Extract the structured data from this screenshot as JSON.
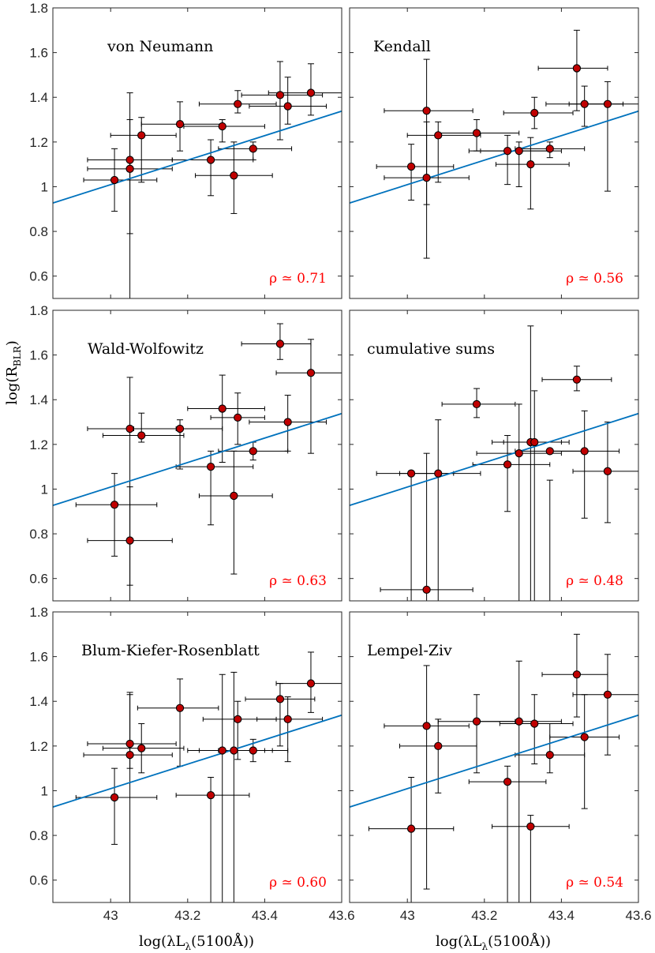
{
  "figure": {
    "ylabel": "log(R_BLR)",
    "ylabel_main": "log(R",
    "ylabel_sub": "BLR",
    "ylabel_close": ")",
    "xlabel": "log(λL_λ(5100Å))",
    "xlabel_main": "log(λL",
    "xlabel_sub": "λ",
    "xlabel_close": "(5100Å))",
    "colors": {
      "marker_fill": "#c00000",
      "fit_line": "#0072bd",
      "rho_text": "#ff0000",
      "axes": "#262626",
      "errorbar": "#000000"
    }
  },
  "chart_data": [
    {
      "type": "scatter",
      "title": "von Neumann",
      "rho_label": "ρ ≃ 0.71",
      "xlim": [
        42.85,
        43.6
      ],
      "ylim": [
        0.5,
        1.8
      ],
      "xticks": [
        43,
        43.2,
        43.4,
        43.6
      ],
      "xtick_labels": [
        "43",
        "43.2",
        "43.4",
        "43.6"
      ],
      "yticks": [
        0.6,
        0.8,
        1,
        1.2,
        1.4,
        1.6,
        1.8
      ],
      "ytick_labels": [
        "0.6",
        "0.8",
        "1",
        "1.2",
        "1.4",
        "1.6",
        "1.8"
      ],
      "fit_line": {
        "x": [
          42.85,
          43.6
        ],
        "y": [
          0.927,
          1.338
        ]
      },
      "points": [
        {
          "x": 43.01,
          "y": 1.03,
          "xlo": 42.93,
          "xhi": 43.12,
          "ylo": 0.89,
          "yhi": 1.17
        },
        {
          "x": 43.05,
          "y": 1.08,
          "xlo": 42.94,
          "xhi": 43.16,
          "ylo": 0.79,
          "yhi": 1.3
        },
        {
          "x": 43.05,
          "y": 1.12,
          "xlo": 42.94,
          "xhi": 43.16,
          "ylo": 0.5,
          "yhi": 1.42
        },
        {
          "x": 43.08,
          "y": 1.23,
          "xlo": 43.0,
          "xhi": 43.17,
          "ylo": 1.02,
          "yhi": 1.31
        },
        {
          "x": 43.18,
          "y": 1.28,
          "xlo": 43.08,
          "xhi": 43.29,
          "ylo": 1.16,
          "yhi": 1.38
        },
        {
          "x": 43.26,
          "y": 1.12,
          "xlo": 43.16,
          "xhi": 43.37,
          "ylo": 0.96,
          "yhi": 1.21
        },
        {
          "x": 43.29,
          "y": 1.27,
          "xlo": 43.19,
          "xhi": 43.4,
          "ylo": 1.2,
          "yhi": 1.3
        },
        {
          "x": 43.32,
          "y": 1.05,
          "xlo": 43.22,
          "xhi": 43.42,
          "ylo": 0.88,
          "yhi": 1.2
        },
        {
          "x": 43.33,
          "y": 1.37,
          "xlo": 43.23,
          "xhi": 43.43,
          "ylo": 1.33,
          "yhi": 1.43
        },
        {
          "x": 43.37,
          "y": 1.17,
          "xlo": 43.28,
          "xhi": 43.47,
          "ylo": 1.12,
          "yhi": 1.2
        },
        {
          "x": 43.44,
          "y": 1.41,
          "xlo": 43.34,
          "xhi": 43.55,
          "ylo": 1.21,
          "yhi": 1.56
        },
        {
          "x": 43.46,
          "y": 1.36,
          "xlo": 43.36,
          "xhi": 43.56,
          "ylo": 1.28,
          "yhi": 1.49
        },
        {
          "x": 43.52,
          "y": 1.42,
          "xlo": 43.41,
          "xhi": 43.6,
          "ylo": 1.32,
          "yhi": 1.55
        }
      ]
    },
    {
      "type": "scatter",
      "title": "Kendall",
      "rho_label": "ρ ≃ 0.56",
      "xlim": [
        42.85,
        43.6
      ],
      "ylim": [
        0.5,
        1.8
      ],
      "xticks": [
        43,
        43.2,
        43.4,
        43.6
      ],
      "xtick_labels": [
        "43",
        "43.2",
        "43.4",
        "43.6"
      ],
      "yticks": [
        0.6,
        0.8,
        1,
        1.2,
        1.4,
        1.6,
        1.8
      ],
      "ytick_labels": [
        "0.6",
        "0.8",
        "1",
        "1.2",
        "1.4",
        "1.6",
        "1.8"
      ],
      "fit_line": {
        "x": [
          42.85,
          43.6
        ],
        "y": [
          0.927,
          1.338
        ]
      },
      "points": [
        {
          "x": 43.01,
          "y": 1.09,
          "xlo": 42.92,
          "xhi": 43.12,
          "ylo": 0.94,
          "yhi": 1.19
        },
        {
          "x": 43.05,
          "y": 1.04,
          "xlo": 42.94,
          "xhi": 43.16,
          "ylo": 0.68,
          "yhi": 1.29
        },
        {
          "x": 43.05,
          "y": 1.34,
          "xlo": 42.94,
          "xhi": 43.17,
          "ylo": 0.92,
          "yhi": 1.57
        },
        {
          "x": 43.08,
          "y": 1.23,
          "xlo": 43.0,
          "xhi": 43.19,
          "ylo": 1.02,
          "yhi": 1.29
        },
        {
          "x": 43.18,
          "y": 1.24,
          "xlo": 43.08,
          "xhi": 43.29,
          "ylo": 1.16,
          "yhi": 1.3
        },
        {
          "x": 43.26,
          "y": 1.16,
          "xlo": 43.16,
          "xhi": 43.37,
          "ylo": 1.01,
          "yhi": 1.23
        },
        {
          "x": 43.29,
          "y": 1.16,
          "xlo": 43.19,
          "xhi": 43.4,
          "ylo": 1.0,
          "yhi": 1.2
        },
        {
          "x": 43.32,
          "y": 1.1,
          "xlo": 43.23,
          "xhi": 43.42,
          "ylo": 0.9,
          "yhi": 1.22
        },
        {
          "x": 43.33,
          "y": 1.33,
          "xlo": 43.25,
          "xhi": 43.43,
          "ylo": 1.26,
          "yhi": 1.4
        },
        {
          "x": 43.37,
          "y": 1.17,
          "xlo": 43.28,
          "xhi": 43.46,
          "ylo": 1.13,
          "yhi": 1.2
        },
        {
          "x": 43.44,
          "y": 1.53,
          "xlo": 43.34,
          "xhi": 43.52,
          "ylo": 1.34,
          "yhi": 1.7
        },
        {
          "x": 43.46,
          "y": 1.37,
          "xlo": 43.36,
          "xhi": 43.56,
          "ylo": 1.27,
          "yhi": 1.45
        },
        {
          "x": 43.52,
          "y": 1.37,
          "xlo": 43.42,
          "xhi": 43.6,
          "ylo": 0.98,
          "yhi": 1.47
        }
      ]
    },
    {
      "type": "scatter",
      "title": "Wald-Wolfowitz",
      "rho_label": "ρ ≃ 0.63",
      "xlim": [
        42.85,
        43.6
      ],
      "ylim": [
        0.5,
        1.8
      ],
      "xticks": [
        43,
        43.2,
        43.4,
        43.6
      ],
      "xtick_labels": [
        "43",
        "43.2",
        "43.4",
        "43.6"
      ],
      "yticks": [
        0.6,
        0.8,
        1,
        1.2,
        1.4,
        1.6,
        1.8
      ],
      "ytick_labels": [
        "0.6",
        "0.8",
        "1",
        "1.2",
        "1.4",
        "1.6",
        "1.8"
      ],
      "fit_line": {
        "x": [
          42.85,
          43.6
        ],
        "y": [
          0.927,
          1.338
        ]
      },
      "points": [
        {
          "x": 43.01,
          "y": 0.93,
          "xlo": 42.91,
          "xhi": 43.12,
          "ylo": 0.7,
          "yhi": 1.07
        },
        {
          "x": 43.05,
          "y": 0.77,
          "xlo": 42.94,
          "xhi": 43.16,
          "ylo": 0.57,
          "yhi": 1.01
        },
        {
          "x": 43.05,
          "y": 1.27,
          "xlo": 42.94,
          "xhi": 43.17,
          "ylo": 0.5,
          "yhi": 1.5
        },
        {
          "x": 43.08,
          "y": 1.24,
          "xlo": 42.98,
          "xhi": 43.19,
          "ylo": 1.21,
          "yhi": 1.34
        },
        {
          "x": 43.18,
          "y": 1.27,
          "xlo": 43.06,
          "xhi": 43.29,
          "ylo": 1.09,
          "yhi": 1.31
        },
        {
          "x": 43.26,
          "y": 1.1,
          "xlo": 43.17,
          "xhi": 43.37,
          "ylo": 0.84,
          "yhi": 1.17
        },
        {
          "x": 43.29,
          "y": 1.36,
          "xlo": 43.2,
          "xhi": 43.4,
          "ylo": 1.12,
          "yhi": 1.51
        },
        {
          "x": 43.32,
          "y": 0.97,
          "xlo": 43.23,
          "xhi": 43.42,
          "ylo": 0.62,
          "yhi": 1.17
        },
        {
          "x": 43.33,
          "y": 1.32,
          "xlo": 43.26,
          "xhi": 43.4,
          "ylo": 1.2,
          "yhi": 1.43
        },
        {
          "x": 43.37,
          "y": 1.17,
          "xlo": 43.28,
          "xhi": 43.46,
          "ylo": 1.13,
          "yhi": 1.21
        },
        {
          "x": 43.44,
          "y": 1.65,
          "xlo": 43.34,
          "xhi": 43.52,
          "ylo": 1.58,
          "yhi": 1.74
        },
        {
          "x": 43.46,
          "y": 1.3,
          "xlo": 43.36,
          "xhi": 43.56,
          "ylo": 1.17,
          "yhi": 1.42
        },
        {
          "x": 43.52,
          "y": 1.52,
          "xlo": 43.43,
          "xhi": 43.6,
          "ylo": 1.16,
          "yhi": 1.67
        }
      ]
    },
    {
      "type": "scatter",
      "title": "cumulative sums",
      "rho_label": "ρ ≃ 0.48",
      "xlim": [
        42.85,
        43.6
      ],
      "ylim": [
        0.5,
        1.8
      ],
      "xticks": [
        43,
        43.2,
        43.4,
        43.6
      ],
      "xtick_labels": [
        "43",
        "43.2",
        "43.4",
        "43.6"
      ],
      "yticks": [
        0.6,
        0.8,
        1,
        1.2,
        1.4,
        1.6,
        1.8
      ],
      "ytick_labels": [
        "0.6",
        "0.8",
        "1",
        "1.2",
        "1.4",
        "1.6",
        "1.8"
      ],
      "fit_line": {
        "x": [
          42.85,
          43.6
        ],
        "y": [
          0.927,
          1.338
        ]
      },
      "points": [
        {
          "x": 43.01,
          "y": 1.07,
          "xlo": 42.92,
          "xhi": 43.12,
          "ylo": 0.5,
          "yhi": 1.08
        },
        {
          "x": 43.05,
          "y": 0.55,
          "xlo": 42.93,
          "xhi": 43.17,
          "ylo": 0.5,
          "yhi": 1.16
        },
        {
          "x": 43.08,
          "y": 1.07,
          "xlo": 42.98,
          "xhi": 43.19,
          "ylo": 0.5,
          "yhi": 1.31
        },
        {
          "x": 43.18,
          "y": 1.38,
          "xlo": 43.09,
          "xhi": 43.28,
          "ylo": 1.32,
          "yhi": 1.45
        },
        {
          "x": 43.26,
          "y": 1.11,
          "xlo": 43.17,
          "xhi": 43.37,
          "ylo": 0.9,
          "yhi": 1.24
        },
        {
          "x": 43.29,
          "y": 1.16,
          "xlo": 43.18,
          "xhi": 43.4,
          "ylo": 0.5,
          "yhi": 1.38
        },
        {
          "x": 43.32,
          "y": 1.21,
          "xlo": 43.22,
          "xhi": 43.42,
          "ylo": 0.5,
          "yhi": 1.73
        },
        {
          "x": 43.33,
          "y": 1.21,
          "xlo": 43.25,
          "xhi": 43.4,
          "ylo": 0.5,
          "yhi": 1.44
        },
        {
          "x": 43.37,
          "y": 1.17,
          "xlo": 43.28,
          "xhi": 43.46,
          "ylo": 0.5,
          "yhi": 1.04
        },
        {
          "x": 43.44,
          "y": 1.49,
          "xlo": 43.35,
          "xhi": 43.53,
          "ylo": 1.44,
          "yhi": 1.55
        },
        {
          "x": 43.46,
          "y": 1.17,
          "xlo": 43.37,
          "xhi": 43.55,
          "ylo": 0.87,
          "yhi": 1.35
        },
        {
          "x": 43.52,
          "y": 1.08,
          "xlo": 43.43,
          "xhi": 43.6,
          "ylo": 0.85,
          "yhi": 1.3
        }
      ]
    },
    {
      "type": "scatter",
      "title": "Blum-Kiefer-Rosenblatt",
      "rho_label": "ρ ≃ 0.60",
      "xlim": [
        42.85,
        43.6
      ],
      "ylim": [
        0.5,
        1.8
      ],
      "xticks": [
        43,
        43.2,
        43.4,
        43.6
      ],
      "xtick_labels": [
        "43",
        "43.2",
        "43.4",
        "43.6"
      ],
      "yticks": [
        0.6,
        0.8,
        1,
        1.2,
        1.4,
        1.6,
        1.8
      ],
      "ytick_labels": [
        "0.6",
        "0.8",
        "1",
        "1.2",
        "1.4",
        "1.6",
        "1.8"
      ],
      "fit_line": {
        "x": [
          42.85,
          43.6
        ],
        "y": [
          0.927,
          1.338
        ]
      },
      "points": [
        {
          "x": 43.01,
          "y": 0.97,
          "xlo": 42.91,
          "xhi": 43.12,
          "ylo": 0.76,
          "yhi": 1.1
        },
        {
          "x": 43.05,
          "y": 1.16,
          "xlo": 42.93,
          "xhi": 43.16,
          "ylo": 0.5,
          "yhi": 1.44
        },
        {
          "x": 43.05,
          "y": 1.21,
          "xlo": 42.94,
          "xhi": 43.17,
          "ylo": 1.1,
          "yhi": 1.43
        },
        {
          "x": 43.08,
          "y": 1.19,
          "xlo": 42.98,
          "xhi": 43.19,
          "ylo": 1.08,
          "yhi": 1.3
        },
        {
          "x": 43.18,
          "y": 1.37,
          "xlo": 43.07,
          "xhi": 43.28,
          "ylo": 1.11,
          "yhi": 1.5
        },
        {
          "x": 43.26,
          "y": 0.98,
          "xlo": 43.17,
          "xhi": 43.36,
          "ylo": 0.5,
          "yhi": 1.06
        },
        {
          "x": 43.29,
          "y": 1.18,
          "xlo": 43.2,
          "xhi": 43.4,
          "ylo": 0.5,
          "yhi": 1.52
        },
        {
          "x": 43.32,
          "y": 1.18,
          "xlo": 43.23,
          "xhi": 43.42,
          "ylo": 0.5,
          "yhi": 1.53
        },
        {
          "x": 43.33,
          "y": 1.32,
          "xlo": 43.24,
          "xhi": 43.43,
          "ylo": 1.14,
          "yhi": 1.4
        },
        {
          "x": 43.37,
          "y": 1.18,
          "xlo": 43.28,
          "xhi": 43.46,
          "ylo": 1.13,
          "yhi": 1.23
        },
        {
          "x": 43.44,
          "y": 1.41,
          "xlo": 43.35,
          "xhi": 43.53,
          "ylo": 1.2,
          "yhi": 1.48
        },
        {
          "x": 43.46,
          "y": 1.32,
          "xlo": 43.38,
          "xhi": 43.55,
          "ylo": 1.13,
          "yhi": 1.42
        },
        {
          "x": 43.52,
          "y": 1.48,
          "xlo": 43.43,
          "xhi": 43.6,
          "ylo": 1.35,
          "yhi": 1.62
        }
      ]
    },
    {
      "type": "scatter",
      "title": "Lempel-Ziv",
      "rho_label": "ρ ≃ 0.54",
      "xlim": [
        42.85,
        43.6
      ],
      "ylim": [
        0.5,
        1.8
      ],
      "xticks": [
        43,
        43.2,
        43.4,
        43.6
      ],
      "xtick_labels": [
        "43",
        "43.2",
        "43.4",
        "43.6"
      ],
      "yticks": [
        0.6,
        0.8,
        1,
        1.2,
        1.4,
        1.6,
        1.8
      ],
      "ytick_labels": [
        "0.6",
        "0.8",
        "1",
        "1.2",
        "1.4",
        "1.6",
        "1.8"
      ],
      "fit_line": {
        "x": [
          42.85,
          43.6
        ],
        "y": [
          0.927,
          1.338
        ]
      },
      "points": [
        {
          "x": 43.01,
          "y": 0.83,
          "xlo": 42.9,
          "xhi": 43.12,
          "ylo": 0.5,
          "yhi": 1.06
        },
        {
          "x": 43.05,
          "y": 1.29,
          "xlo": 42.94,
          "xhi": 43.16,
          "ylo": 0.56,
          "yhi": 1.56
        },
        {
          "x": 43.08,
          "y": 1.2,
          "xlo": 42.98,
          "xhi": 43.18,
          "ylo": 0.99,
          "yhi": 1.32
        },
        {
          "x": 43.18,
          "y": 1.31,
          "xlo": 43.08,
          "xhi": 43.28,
          "ylo": 1.08,
          "yhi": 1.43
        },
        {
          "x": 43.26,
          "y": 1.04,
          "xlo": 43.16,
          "xhi": 43.36,
          "ylo": 0.5,
          "yhi": 1.11
        },
        {
          "x": 43.29,
          "y": 1.31,
          "xlo": 43.18,
          "xhi": 43.4,
          "ylo": 0.5,
          "yhi": 1.58
        },
        {
          "x": 43.32,
          "y": 0.84,
          "xlo": 43.22,
          "xhi": 43.42,
          "ylo": 0.5,
          "yhi": 0.89
        },
        {
          "x": 43.33,
          "y": 1.3,
          "xlo": 43.24,
          "xhi": 43.43,
          "ylo": 1.12,
          "yhi": 1.43
        },
        {
          "x": 43.37,
          "y": 1.16,
          "xlo": 43.28,
          "xhi": 43.46,
          "ylo": 1.08,
          "yhi": 1.3
        },
        {
          "x": 43.44,
          "y": 1.52,
          "xlo": 43.35,
          "xhi": 43.52,
          "ylo": 1.33,
          "yhi": 1.7
        },
        {
          "x": 43.46,
          "y": 1.24,
          "xlo": 43.37,
          "xhi": 43.55,
          "ylo": 0.92,
          "yhi": 1.43
        },
        {
          "x": 43.52,
          "y": 1.43,
          "xlo": 43.43,
          "xhi": 43.6,
          "ylo": 1.16,
          "yhi": 1.61
        }
      ]
    }
  ]
}
